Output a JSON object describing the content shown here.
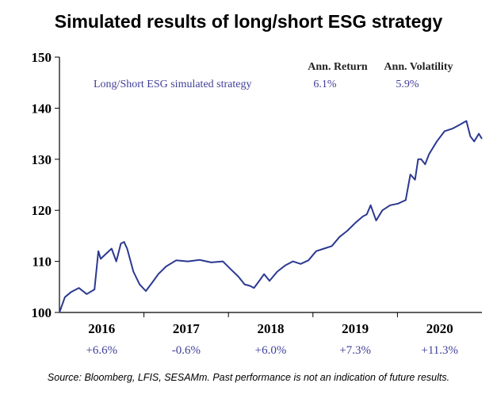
{
  "title": "Simulated results of long/short ESG strategy",
  "source": "Source: Bloomberg, LFIS, SESAMm. Past performance is not an indication of future results.",
  "chart_data": {
    "type": "line",
    "title": "Simulated results of long/short ESG strategy",
    "xlabel": "",
    "ylabel": "",
    "ylim": [
      100,
      150
    ],
    "yticks": [
      "100",
      "110",
      "120",
      "130",
      "140",
      "150"
    ],
    "xlim": [
      2015.55,
      2020.98
    ],
    "grid": false,
    "series": [
      {
        "name": "Long/Short ESG simulated strategy",
        "color": "#2b3990",
        "x": [
          2015.55,
          2015.62,
          2015.7,
          2015.8,
          2015.9,
          2016.0,
          2016.05,
          2016.08,
          2016.15,
          2016.22,
          2016.28,
          2016.34,
          2016.38,
          2016.42,
          2016.5,
          2016.58,
          2016.66,
          2016.74,
          2016.82,
          2016.92,
          2017.05,
          2017.2,
          2017.35,
          2017.5,
          2017.65,
          2017.75,
          2017.85,
          2017.93,
          2018.0,
          2018.05,
          2018.1,
          2018.18,
          2018.25,
          2018.35,
          2018.45,
          2018.55,
          2018.65,
          2018.75,
          2018.85,
          2018.95,
          2019.05,
          2019.15,
          2019.25,
          2019.35,
          2019.45,
          2019.5,
          2019.55,
          2019.62,
          2019.7,
          2019.8,
          2019.9,
          2020.0,
          2020.06,
          2020.12,
          2020.16,
          2020.2,
          2020.25,
          2020.3,
          2020.4,
          2020.5,
          2020.6,
          2020.7,
          2020.78,
          2020.83,
          2020.88,
          2020.94,
          2020.98
        ],
        "values": [
          100.0,
          103.0,
          104.0,
          104.8,
          103.6,
          104.5,
          112.0,
          110.5,
          111.5,
          112.5,
          110.0,
          113.5,
          113.8,
          112.5,
          108.0,
          105.5,
          104.2,
          105.8,
          107.5,
          109.0,
          110.2,
          110.0,
          110.3,
          109.8,
          110.0,
          108.5,
          107.0,
          105.5,
          105.2,
          104.8,
          105.8,
          107.5,
          106.2,
          108.0,
          109.2,
          110.0,
          109.5,
          110.2,
          112.0,
          112.5,
          113.0,
          114.8,
          116.0,
          117.5,
          118.8,
          119.2,
          121.0,
          118.0,
          120.0,
          121.0,
          121.3,
          122.0,
          127.0,
          126.0,
          130.0,
          130.0,
          129.0,
          131.0,
          133.5,
          135.5,
          136.0,
          136.8,
          137.5,
          134.5,
          133.5,
          135.0,
          134.0
        ]
      }
    ],
    "years": [
      "2016",
      "2017",
      "2018",
      "2019",
      "2020"
    ],
    "yearly_returns": [
      "+6.6%",
      "-0.6%",
      "+6.0%",
      "+7.3%",
      "+11.3%"
    ],
    "table_headers": [
      "Ann. Return",
      "Ann. Volatility"
    ],
    "table_row": {
      "label": "Long/Short ESG simulated strategy",
      "ann_return": "6.1%",
      "ann_volatility": "5.9%"
    }
  }
}
